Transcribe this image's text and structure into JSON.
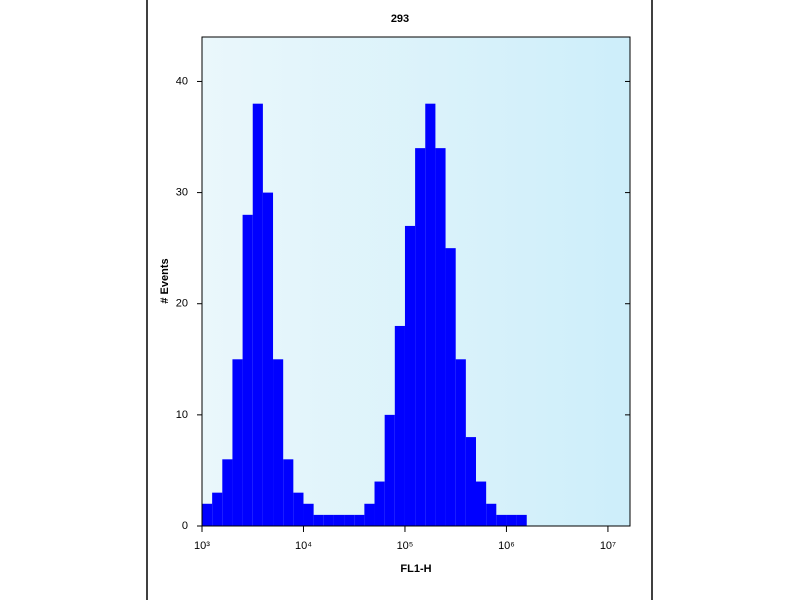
{
  "chart_data": {
    "type": "histogram",
    "title": "293",
    "x_label": "FL1-H",
    "y_label": "# Events",
    "xscale": "log",
    "color": "#0000ff",
    "bins": [
      1000,
      1259,
      1585,
      1995,
      2512,
      3162,
      3981,
      5012,
      6310,
      7943,
      10000,
      12589,
      15849,
      19953,
      25119,
      31623,
      39811,
      50119,
      63096,
      79433,
      100000,
      125893,
      158489,
      199526,
      251189,
      316228,
      398107,
      501187,
      630957,
      794328,
      1000000,
      1258925,
      1584893,
      1995262,
      2511886
    ],
    "values": [
      2,
      3,
      6,
      15,
      28,
      38,
      30,
      15,
      6,
      3,
      2,
      1,
      1,
      1,
      1,
      1,
      2,
      4,
      10,
      18,
      27,
      34,
      38,
      34,
      25,
      15,
      8,
      4,
      2,
      1,
      1,
      1,
      0,
      0
    ],
    "xlim": [
      1000,
      16500000
    ],
    "xticks": [
      {
        "value": 1000,
        "label": "10³"
      },
      {
        "value": 10000,
        "label": "10⁴"
      },
      {
        "value": 100000,
        "label": "10⁵"
      },
      {
        "value": 1000000,
        "label": "10⁶"
      },
      {
        "value": 10000000,
        "label": "10⁷"
      }
    ],
    "ylim": [
      0,
      44
    ],
    "yticks": [
      0,
      10,
      20,
      30,
      40
    ]
  }
}
